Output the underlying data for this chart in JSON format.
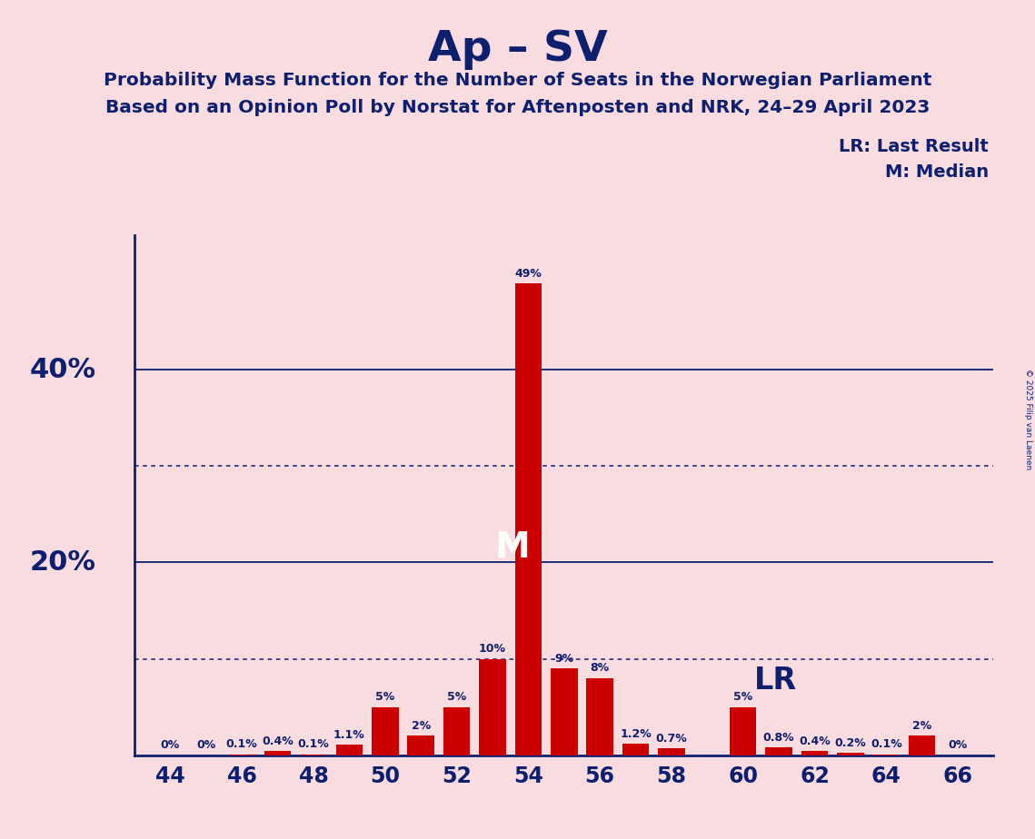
{
  "title": "Ap – SV",
  "subtitle1": "Probability Mass Function for the Number of Seats in the Norwegian Parliament",
  "subtitle2": "Based on an Opinion Poll by Norstat for Aftenposten and NRK, 24–29 April 2023",
  "copyright": "© 2025 Filip van Laenen",
  "legend_lr": "LR: Last Result",
  "legend_m": "M: Median",
  "seats": [
    44,
    45,
    46,
    47,
    48,
    49,
    50,
    51,
    52,
    53,
    54,
    55,
    56,
    57,
    58,
    59,
    60,
    61,
    62,
    63,
    64,
    65,
    66
  ],
  "probabilities": [
    0.0,
    0.0,
    0.1,
    0.4,
    0.1,
    1.1,
    5.0,
    2.0,
    5.0,
    10.0,
    49.0,
    9.0,
    8.0,
    1.2,
    0.7,
    0.0,
    5.0,
    0.8,
    0.4,
    0.2,
    0.1,
    2.0,
    0.0
  ],
  "bar_labels": [
    "0%",
    "0%",
    "0.1%",
    "0.4%",
    "0.1%",
    "1.1%",
    "5%",
    "2%",
    "5%",
    "10%",
    "49%",
    "9%",
    "8%",
    "1.2%",
    "0.7%",
    "",
    "5%",
    "0.8%",
    "0.4%",
    "0.2%",
    "0.1%",
    "2%",
    "0%"
  ],
  "median_seat": 54,
  "lr_seat": 59,
  "bar_color": "#cc0000",
  "background_color": "#f9dce0",
  "text_color": "#0d1f6e",
  "ylim_max": 54,
  "xlabel_seats": [
    44,
    46,
    48,
    50,
    52,
    54,
    56,
    58,
    60,
    62,
    64,
    66
  ],
  "solid_lines": [
    20,
    40
  ],
  "dotted_lines": [
    10,
    30
  ]
}
